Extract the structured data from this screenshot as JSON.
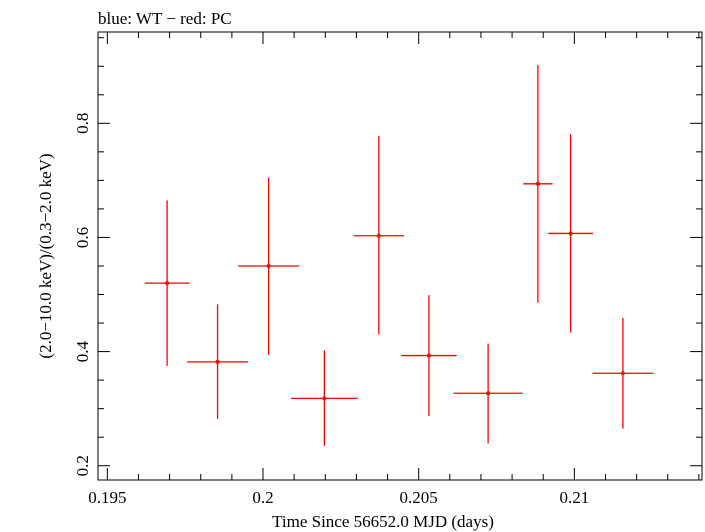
{
  "chart_data": {
    "type": "scatter",
    "title": "blue: WT − red: PC",
    "xlabel": "Time Since 56652.0 MJD (days)",
    "ylabel": "(2.0−10.0 keV)/(0.3−2.0 keV)",
    "xlim": [
      0.1947,
      0.2141
    ],
    "ylim": [
      0.175,
      0.96
    ],
    "x_ticks": [
      {
        "value": 0.195,
        "label": "0.195"
      },
      {
        "value": 0.2,
        "label": "0.2"
      },
      {
        "value": 0.205,
        "label": "0.205"
      },
      {
        "value": 0.21,
        "label": "0.21"
      }
    ],
    "y_ticks": [
      {
        "value": 0.2,
        "label": "0.2"
      },
      {
        "value": 0.4,
        "label": "0.4"
      },
      {
        "value": 0.6,
        "label": "0.6"
      },
      {
        "value": 0.8,
        "label": "0.8"
      }
    ],
    "grid": false,
    "series": [
      {
        "name": "PC",
        "color": "#ff0000",
        "points": [
          {
            "x": 0.19692,
            "xerr": 0.00072,
            "y": 0.52,
            "ylo": 0.375,
            "yhi": 0.665
          },
          {
            "x": 0.19854,
            "xerr": 0.00098,
            "y": 0.382,
            "ylo": 0.282,
            "yhi": 0.483
          },
          {
            "x": 0.20018,
            "xerr": 0.00098,
            "y": 0.55,
            "ylo": 0.394,
            "yhi": 0.705
          },
          {
            "x": 0.20197,
            "xerr": 0.00107,
            "y": 0.318,
            "ylo": 0.235,
            "yhi": 0.402
          },
          {
            "x": 0.20372,
            "xerr": 0.00081,
            "y": 0.603,
            "ylo": 0.43,
            "yhi": 0.778
          },
          {
            "x": 0.20533,
            "xerr": 0.00089,
            "y": 0.393,
            "ylo": 0.287,
            "yhi": 0.499
          },
          {
            "x": 0.20723,
            "xerr": 0.00111,
            "y": 0.327,
            "ylo": 0.239,
            "yhi": 0.414
          },
          {
            "x": 0.20883,
            "xerr": 0.00047,
            "y": 0.694,
            "ylo": 0.486,
            "yhi": 0.902
          },
          {
            "x": 0.20988,
            "xerr": 0.00072,
            "y": 0.607,
            "ylo": 0.433,
            "yhi": 0.781
          },
          {
            "x": 0.21156,
            "xerr": 0.00098,
            "y": 0.362,
            "ylo": 0.265,
            "yhi": 0.459
          }
        ]
      }
    ]
  }
}
